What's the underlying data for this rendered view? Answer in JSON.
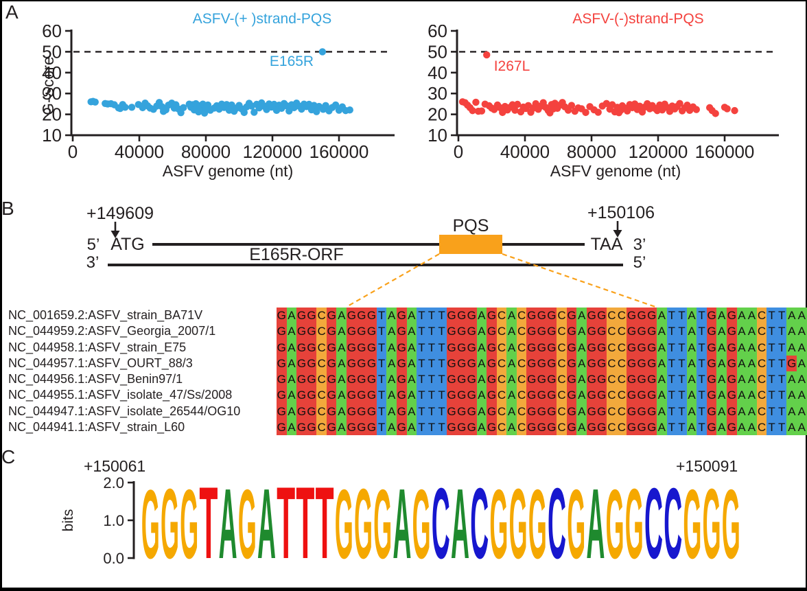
{
  "panels": {
    "a": "A",
    "b": "B",
    "c": "C"
  },
  "colors": {
    "plus_strand_blue": "#35A3DC",
    "minus_strand_red": "#F4423E",
    "figure_black": "#231F20",
    "pqs_orange": "#F9A11B"
  },
  "chart_data": {
    "plus_strand": {
      "type": "scatter",
      "title": "ASFV-(+ )strand-PQS",
      "xlabel": "ASFV genome (nt)",
      "ylabel": "G-Score",
      "color": "#35A3DC",
      "xlim": [
        0,
        175000
      ],
      "ylim": [
        10,
        60
      ],
      "xticks": [
        0,
        40000,
        80000,
        120000,
        160000
      ],
      "yticks": [
        10,
        20,
        30,
        40,
        50,
        60
      ],
      "threshold": 50,
      "grid": false,
      "highlight": {
        "label": "E165R",
        "x": 150061,
        "y": 50
      },
      "points": [
        [
          11000,
          26
        ],
        [
          12200,
          26.2
        ],
        [
          13500,
          25.9
        ],
        [
          19500,
          25.2
        ],
        [
          21000,
          25
        ],
        [
          23000,
          25.1
        ],
        [
          25000,
          24.6
        ],
        [
          27500,
          23.1
        ],
        [
          28500,
          22.8
        ],
        [
          30000,
          24.7
        ],
        [
          31500,
          23.4
        ],
        [
          35500,
          23.4
        ],
        [
          39500,
          24.7
        ],
        [
          42000,
          23.2
        ],
        [
          43500,
          25.4
        ],
        [
          45000,
          24.1
        ],
        [
          46500,
          23
        ],
        [
          48500,
          22.4
        ],
        [
          50500,
          24
        ],
        [
          52000,
          25.7
        ],
        [
          53500,
          23.7
        ],
        [
          54500,
          21.4
        ],
        [
          56000,
          22.2
        ],
        [
          57500,
          24.4
        ],
        [
          59500,
          25.4
        ],
        [
          61000,
          23
        ],
        [
          62000,
          24.6
        ],
        [
          63500,
          22.6
        ],
        [
          65000,
          20.8
        ],
        [
          66500,
          23.2
        ],
        [
          70000,
          24.9
        ],
        [
          71000,
          23.4
        ],
        [
          72000,
          24.6
        ],
        [
          73000,
          22.1
        ],
        [
          74000,
          25.1
        ],
        [
          75000,
          23.8
        ],
        [
          75600,
          21.2
        ],
        [
          76400,
          24.2
        ],
        [
          77200,
          22.6
        ],
        [
          78200,
          24.9
        ],
        [
          79200,
          20.6
        ],
        [
          80200,
          23.1
        ],
        [
          81200,
          24.5
        ],
        [
          82700,
          22
        ],
        [
          85000,
          23
        ],
        [
          86500,
          24.1
        ],
        [
          88000,
          22.5
        ],
        [
          89500,
          24.9
        ],
        [
          91000,
          23.3
        ],
        [
          92500,
          24.7
        ],
        [
          94000,
          22
        ],
        [
          95500,
          24.5
        ],
        [
          97000,
          21.5
        ],
        [
          98500,
          23
        ],
        [
          100000,
          24.3
        ],
        [
          101500,
          22.6
        ],
        [
          103000,
          20.9
        ],
        [
          104500,
          23.6
        ],
        [
          106000,
          25.3
        ],
        [
          107500,
          24
        ],
        [
          109000,
          21
        ],
        [
          110500,
          24.8
        ],
        [
          112000,
          23.1
        ],
        [
          113500,
          25.5
        ],
        [
          115000,
          23.9
        ],
        [
          116500,
          22.3
        ],
        [
          118000,
          25
        ],
        [
          119500,
          23.5
        ],
        [
          121000,
          24.8
        ],
        [
          122500,
          21.9
        ],
        [
          124000,
          24.4
        ],
        [
          125500,
          22.9
        ],
        [
          127000,
          25.2
        ],
        [
          128500,
          24.1
        ],
        [
          130000,
          21.6
        ],
        [
          131500,
          24.6
        ],
        [
          133000,
          23.2
        ],
        [
          134500,
          25.4
        ],
        [
          136000,
          24
        ],
        [
          137500,
          22.5
        ],
        [
          139000,
          24.9
        ],
        [
          140500,
          23.7
        ],
        [
          142000,
          24.8
        ],
        [
          143500,
          22.2
        ],
        [
          145000,
          24.3
        ],
        [
          146500,
          21.3
        ],
        [
          148000,
          23.8
        ],
        [
          150500,
          22.4
        ],
        [
          152000,
          24.2
        ],
        [
          154000,
          21.7
        ],
        [
          156000,
          23.3
        ],
        [
          158000,
          24.5
        ],
        [
          160000,
          22
        ],
        [
          162000,
          23.6
        ],
        [
          164000,
          21.8
        ],
        [
          166500,
          22.1
        ]
      ]
    },
    "minus_strand": {
      "type": "scatter",
      "title": "ASFV-(-)strand-PQS",
      "xlabel": "ASFV genome (nt)",
      "ylabel": "",
      "color": "#F4423E",
      "xlim": [
        0,
        175000
      ],
      "ylim": [
        10,
        60
      ],
      "xticks": [
        0,
        40000,
        80000,
        120000,
        160000
      ],
      "yticks": [
        10,
        20,
        30,
        40,
        50,
        60
      ],
      "threshold": 50,
      "grid": false,
      "highlight": {
        "label": "I267L",
        "x": 17000,
        "y": 48.5
      },
      "points": [
        [
          2500,
          26
        ],
        [
          4000,
          25.6
        ],
        [
          5500,
          24.4
        ],
        [
          7000,
          23.2
        ],
        [
          8500,
          21.8
        ],
        [
          10500,
          25.8
        ],
        [
          12000,
          21.5
        ],
        [
          14000,
          21.6
        ],
        [
          16000,
          24.9
        ],
        [
          18500,
          24.1
        ],
        [
          20000,
          23
        ],
        [
          21500,
          22.3
        ],
        [
          23500,
          24.5
        ],
        [
          25000,
          23.2
        ],
        [
          26500,
          20.9
        ],
        [
          28000,
          23.8
        ],
        [
          29500,
          22.1
        ],
        [
          31000,
          23.4
        ],
        [
          32500,
          24.6
        ],
        [
          34000,
          22
        ],
        [
          35500,
          24.8
        ],
        [
          37500,
          21.2
        ],
        [
          39000,
          23.5
        ],
        [
          40500,
          22.8
        ],
        [
          42000,
          24.2
        ],
        [
          43500,
          21
        ],
        [
          45000,
          23
        ],
        [
          46500,
          25.1
        ],
        [
          48000,
          22.4
        ],
        [
          49500,
          23.9
        ],
        [
          51000,
          25.6
        ],
        [
          52500,
          23.3
        ],
        [
          54000,
          21.8
        ],
        [
          55000,
          20.7
        ],
        [
          56000,
          24.7
        ],
        [
          57000,
          22.6
        ],
        [
          58000,
          25.3
        ],
        [
          59500,
          22.9
        ],
        [
          61000,
          24.4
        ],
        [
          62500,
          25.7
        ],
        [
          64000,
          23.6
        ],
        [
          66000,
          22
        ],
        [
          68000,
          24.3
        ],
        [
          70000,
          21.5
        ],
        [
          72000,
          23.1
        ],
        [
          74000,
          22.7
        ],
        [
          76500,
          20.9
        ],
        [
          79000,
          23.7
        ],
        [
          81500,
          22.2
        ],
        [
          84000,
          21
        ],
        [
          86500,
          24
        ],
        [
          89000,
          25.2
        ],
        [
          91000,
          22.5
        ],
        [
          92500,
          24.6
        ],
        [
          94000,
          21.2
        ],
        [
          95500,
          23.4
        ],
        [
          96500,
          20.8
        ],
        [
          97500,
          21.9
        ],
        [
          98500,
          24.1
        ],
        [
          100000,
          23
        ],
        [
          101500,
          21.6
        ],
        [
          103000,
          24.7
        ],
        [
          104500,
          23.2
        ],
        [
          106000,
          25
        ],
        [
          107500,
          22.3
        ],
        [
          109000,
          23.9
        ],
        [
          110500,
          21.1
        ],
        [
          112000,
          23.5
        ],
        [
          113500,
          25.1
        ],
        [
          115000,
          22.7
        ],
        [
          116500,
          24.2
        ],
        [
          118000,
          22.9
        ],
        [
          119500,
          21.8
        ],
        [
          121000,
          24.5
        ],
        [
          122500,
          22.1
        ],
        [
          124000,
          24.9
        ],
        [
          125500,
          23.3
        ],
        [
          127000,
          21.4
        ],
        [
          128500,
          24
        ],
        [
          130000,
          22.6
        ],
        [
          131500,
          23.8
        ],
        [
          133000,
          25.2
        ],
        [
          134500,
          21.7
        ],
        [
          136000,
          23.1
        ],
        [
          137500,
          24.4
        ],
        [
          139000,
          21.9
        ],
        [
          141000,
          23.6
        ],
        [
          143000,
          22.3
        ],
        [
          151000,
          23.2
        ],
        [
          152500,
          21.8
        ],
        [
          154500,
          20.4
        ],
        [
          160000,
          23.4
        ],
        [
          161500,
          22.7
        ],
        [
          166000,
          21.8
        ]
      ]
    },
    "logo": {
      "type": "sequence-logo",
      "start_label": "+150061",
      "end_label": "+150091",
      "ylabel": "bits",
      "ylim": [
        0.0,
        2.0
      ],
      "ytick_labels": [
        "2.0",
        "1.0",
        "0.0"
      ],
      "sequence": "GGGTAGATTTGGGAGCACGGGCGAGGCCGGG",
      "bits": [
        1.87,
        1.9,
        1.88,
        1.95,
        1.9,
        1.88,
        1.9,
        1.95,
        1.95,
        1.95,
        1.88,
        1.9,
        1.88,
        1.9,
        1.88,
        1.92,
        1.9,
        1.92,
        1.88,
        1.9,
        1.88,
        1.92,
        1.88,
        1.9,
        1.88,
        1.9,
        1.92,
        1.92,
        1.88,
        1.9,
        1.88
      ],
      "colors": {
        "G": "#F5A800",
        "A": "#1F8A2E",
        "T": "#EE1111",
        "C": "#1717CE"
      }
    }
  },
  "diagram": {
    "start_coord": "+149609",
    "end_coord": "+150106",
    "pqs_label": "PQS",
    "orf_label": "E165R-ORF",
    "top_left_end": "5’",
    "start_codon": "ATG",
    "stop_codon": "TAA",
    "top_right_end": "3’",
    "bottom_left_end": "3’",
    "bottom_right_end": "5’",
    "box_color": "#F9A11B"
  },
  "alignment": {
    "colors": {
      "A": "#63D04B",
      "G": "#E6423A",
      "C": "#F2A93C",
      "T": "#3F8EE0"
    },
    "rows": [
      {
        "name": "NC_001659.2:ASFV_strain_BA71V",
        "seq": "GAGGCGAGGGTAGATTTGGGAGCACGGGCGAGGCCGGGATTATGAGAACTTAA"
      },
      {
        "name": "NC_044959.2:ASFV_Georgia_2007/1",
        "seq": "GAGGCGAGGGTAGATTTGGGAGCACGGGCGAGGCCGGGATTATGAGAACTTAA"
      },
      {
        "name": "NC_044958.1:ASFV_strain_E75",
        "seq": "GAGGCGAGGGTAGATTTGGGAGCACGGGCGAGGCCGGGATTATGAGAACTTAA"
      },
      {
        "name": "NC_044957.1:ASFV_OURT_88/3",
        "seq": "GAGGCGAGGGTAGATTTGGGAGCACGGGCGAGGCCGGGATTATGAGAACTTGA"
      },
      {
        "name": "NC_044956.1:ASFV_Benin97/1",
        "seq": "GAGGCGAGGGTAGATTTGGGAGCACGGGCGAGGCCGGGATTATGAGAACTTAA"
      },
      {
        "name": "NC_044955.1:ASFV_isolate_47/Ss/2008",
        "seq": "GAGGCGAGGGTAGATTTGGGAGCACGGGCGAGGCCGGGATTATGAGAACTTAA"
      },
      {
        "name": "NC_044947.1:ASFV_isolate_26544/OG10",
        "seq": "GAGGCGAGGGTAGATTTGGGAGCACGGGCGAGGCCGGGATTATGAGAACTTAA"
      },
      {
        "name": "NC_044941.1:ASFV_strain_L60",
        "seq": "GAGGCGAGGGTAGATTTGGGAGCACGGGCGAGGCCGGGATTATGAGAACTTAA"
      }
    ]
  }
}
